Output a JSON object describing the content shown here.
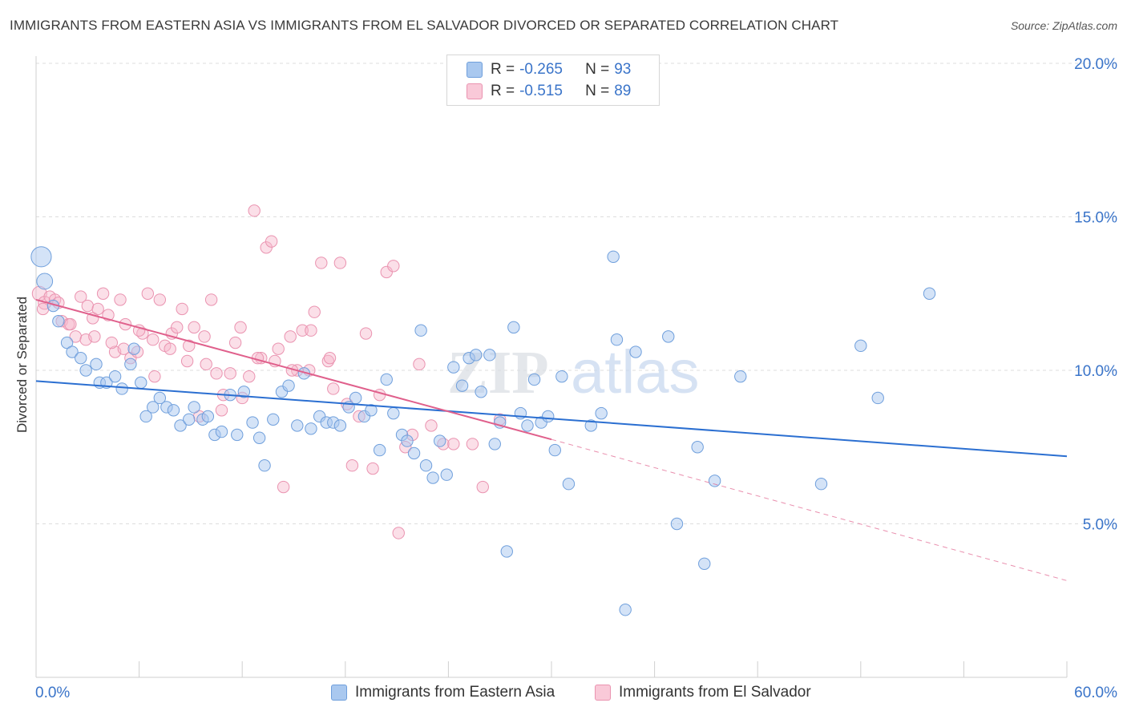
{
  "header": {
    "title": "IMMIGRANTS FROM EASTERN ASIA VS IMMIGRANTS FROM EL SALVADOR DIVORCED OR SEPARATED CORRELATION CHART",
    "source": "Source: ZipAtlas.com"
  },
  "stats": [
    {
      "r_label": "R =",
      "r_value": "-0.265",
      "n_label": "N =",
      "n_value": "93"
    },
    {
      "r_label": "R =",
      "r_value": "-0.515",
      "n_label": "N =",
      "n_value": "89"
    }
  ],
  "legend": {
    "series1": "Immigrants from Eastern Asia",
    "series2": "Immigrants from El Salvador"
  },
  "watermark": {
    "zip": "ZIP",
    "atlas": "atlas"
  },
  "colors": {
    "blue_fill": "#a9c8ef",
    "blue_stroke": "#6f9fdc",
    "blue_line": "#2b6fd1",
    "pink_fill": "#f6b9cc",
    "pink_stroke": "#ea93b0",
    "pink_line": "#e0608c",
    "tick_label": "#3a74c9",
    "grid": "#dddddd"
  },
  "chart_data": {
    "type": "scatter",
    "title": "IMMIGRANTS FROM EASTERN ASIA VS IMMIGRANTS FROM EL SALVADOR DIVORCED OR SEPARATED CORRELATION CHART",
    "xlabel": "",
    "ylabel": "Divorced or Separated",
    "xlim": [
      0,
      60
    ],
    "ylim": [
      0,
      20
    ],
    "x_tick_labels": [
      "0.0%",
      "60.0%"
    ],
    "y_ticks": [
      5,
      10,
      15,
      20
    ],
    "y_tick_labels": [
      "5.0%",
      "10.0%",
      "15.0%",
      "20.0%"
    ],
    "grid": true,
    "legend_position": "bottom",
    "series": [
      {
        "name": "Immigrants from Eastern Asia",
        "r": -0.265,
        "n": 93,
        "trend": {
          "x": [
            0,
            60
          ],
          "y": [
            9.65,
            7.2
          ]
        },
        "points": [
          [
            0.3,
            13.7,
            1.4
          ],
          [
            0.5,
            12.9,
            1.1
          ],
          [
            1.0,
            12.1,
            0.8
          ],
          [
            1.3,
            11.6,
            0.8
          ],
          [
            1.8,
            10.9,
            0.8
          ],
          [
            2.1,
            10.6,
            0.8
          ],
          [
            2.6,
            10.4,
            0.8
          ],
          [
            2.9,
            10.0,
            0.8
          ],
          [
            3.5,
            10.2,
            0.8
          ],
          [
            3.7,
            9.6,
            0.8
          ],
          [
            4.1,
            9.6,
            0.8
          ],
          [
            4.6,
            9.8,
            0.8
          ],
          [
            5.0,
            9.4,
            0.8
          ],
          [
            5.5,
            10.2,
            0.8
          ],
          [
            5.7,
            10.7,
            0.8
          ],
          [
            6.1,
            9.6,
            0.8
          ],
          [
            6.4,
            8.5,
            0.8
          ],
          [
            6.8,
            8.8,
            0.8
          ],
          [
            7.2,
            9.1,
            0.8
          ],
          [
            7.6,
            8.8,
            0.8
          ],
          [
            8.0,
            8.7,
            0.8
          ],
          [
            8.4,
            8.2,
            0.8
          ],
          [
            8.9,
            8.4,
            0.8
          ],
          [
            9.2,
            8.8,
            0.8
          ],
          [
            9.7,
            8.4,
            0.8
          ],
          [
            10.0,
            8.5,
            0.8
          ],
          [
            10.4,
            7.9,
            0.8
          ],
          [
            10.8,
            8.0,
            0.8
          ],
          [
            11.3,
            9.2,
            0.8
          ],
          [
            11.7,
            7.9,
            0.8
          ],
          [
            12.1,
            9.3,
            0.8
          ],
          [
            12.6,
            8.3,
            0.8
          ],
          [
            13.0,
            7.8,
            0.8
          ],
          [
            13.3,
            6.9,
            0.8
          ],
          [
            13.8,
            8.4,
            0.8
          ],
          [
            14.3,
            9.3,
            0.8
          ],
          [
            14.7,
            9.5,
            0.8
          ],
          [
            15.2,
            8.2,
            0.8
          ],
          [
            15.6,
            9.9,
            0.8
          ],
          [
            16.0,
            8.1,
            0.8
          ],
          [
            16.5,
            8.5,
            0.8
          ],
          [
            16.9,
            8.3,
            0.8
          ],
          [
            17.3,
            8.3,
            0.8
          ],
          [
            17.7,
            8.2,
            0.8
          ],
          [
            18.2,
            8.8,
            0.8
          ],
          [
            18.6,
            9.1,
            0.8
          ],
          [
            19.1,
            8.5,
            0.8
          ],
          [
            19.5,
            8.7,
            0.8
          ],
          [
            20.0,
            7.4,
            0.8
          ],
          [
            20.4,
            9.7,
            0.8
          ],
          [
            20.8,
            8.6,
            0.8
          ],
          [
            21.3,
            7.9,
            0.8
          ],
          [
            21.6,
            7.7,
            0.8
          ],
          [
            22.0,
            7.3,
            0.8
          ],
          [
            22.4,
            11.3,
            0.8
          ],
          [
            22.7,
            6.9,
            0.8
          ],
          [
            23.1,
            6.5,
            0.8
          ],
          [
            23.5,
            7.7,
            0.8
          ],
          [
            23.9,
            6.6,
            0.8
          ],
          [
            24.3,
            10.1,
            0.8
          ],
          [
            24.8,
            9.5,
            0.8
          ],
          [
            25.2,
            10.4,
            0.8
          ],
          [
            25.6,
            10.5,
            0.8
          ],
          [
            25.9,
            9.3,
            0.8
          ],
          [
            26.4,
            10.5,
            0.8
          ],
          [
            26.7,
            7.6,
            0.8
          ],
          [
            27.0,
            8.3,
            0.8
          ],
          [
            27.4,
            4.1,
            0.8
          ],
          [
            27.8,
            11.4,
            0.8
          ],
          [
            28.2,
            8.6,
            0.8
          ],
          [
            28.6,
            8.2,
            0.8
          ],
          [
            29.0,
            9.7,
            0.8
          ],
          [
            29.4,
            8.3,
            0.8
          ],
          [
            29.8,
            8.5,
            0.8
          ],
          [
            30.2,
            7.4,
            0.8
          ],
          [
            30.6,
            9.8,
            0.8
          ],
          [
            31.0,
            6.3,
            0.8
          ],
          [
            32.3,
            8.2,
            0.8
          ],
          [
            32.9,
            8.6,
            0.8
          ],
          [
            33.6,
            13.7,
            0.8
          ],
          [
            33.8,
            11.0,
            0.8
          ],
          [
            34.3,
            2.2,
            0.8
          ],
          [
            34.9,
            10.6,
            0.8
          ],
          [
            36.8,
            11.1,
            0.8
          ],
          [
            37.3,
            5.0,
            0.8
          ],
          [
            38.5,
            7.5,
            0.8
          ],
          [
            38.9,
            3.7,
            0.8
          ],
          [
            39.5,
            6.4,
            0.8
          ],
          [
            41.0,
            9.8,
            0.8
          ],
          [
            45.7,
            6.3,
            0.8
          ],
          [
            48.0,
            10.8,
            0.8
          ],
          [
            49.0,
            9.1,
            0.8
          ],
          [
            52.0,
            12.5,
            0.8
          ]
        ]
      },
      {
        "name": "Immigrants from El Salvador",
        "r": -0.515,
        "n": 89,
        "trend": {
          "x": [
            0,
            30
          ],
          "y": [
            12.3,
            7.75
          ]
        },
        "trend_dashed": {
          "x": [
            30,
            60
          ],
          "y": [
            7.75,
            3.15
          ]
        },
        "points": [
          [
            0.2,
            12.5,
            1.0
          ],
          [
            0.5,
            12.2,
            0.9
          ],
          [
            0.8,
            12.4,
            0.8
          ],
          [
            1.1,
            12.3,
            0.8
          ],
          [
            1.5,
            11.6,
            0.8
          ],
          [
            1.9,
            11.5,
            0.8
          ],
          [
            2.3,
            11.1,
            0.8
          ],
          [
            2.6,
            12.4,
            0.8
          ],
          [
            3.0,
            12.1,
            0.8
          ],
          [
            3.3,
            11.7,
            0.8
          ],
          [
            3.6,
            12.0,
            0.8
          ],
          [
            3.9,
            12.5,
            0.8
          ],
          [
            4.2,
            11.8,
            0.8
          ],
          [
            4.6,
            10.6,
            0.8
          ],
          [
            4.9,
            12.3,
            0.8
          ],
          [
            5.2,
            11.5,
            0.8
          ],
          [
            5.5,
            10.4,
            0.8
          ],
          [
            5.9,
            10.6,
            0.8
          ],
          [
            6.2,
            11.2,
            0.8
          ],
          [
            6.5,
            12.5,
            0.8
          ],
          [
            6.9,
            9.8,
            0.8
          ],
          [
            7.2,
            12.3,
            0.8
          ],
          [
            7.5,
            10.8,
            0.8
          ],
          [
            7.9,
            11.2,
            0.8
          ],
          [
            8.2,
            11.4,
            0.8
          ],
          [
            8.5,
            12.0,
            0.8
          ],
          [
            8.9,
            10.8,
            0.8
          ],
          [
            9.2,
            11.4,
            0.8
          ],
          [
            9.5,
            8.5,
            0.8
          ],
          [
            9.9,
            10.2,
            0.8
          ],
          [
            10.2,
            12.3,
            0.8
          ],
          [
            10.5,
            9.9,
            0.8
          ],
          [
            10.9,
            9.2,
            0.8
          ],
          [
            11.3,
            9.9,
            0.8
          ],
          [
            11.6,
            10.9,
            0.8
          ],
          [
            12.0,
            9.1,
            0.8
          ],
          [
            12.4,
            9.8,
            0.8
          ],
          [
            12.7,
            15.2,
            0.8
          ],
          [
            13.1,
            10.4,
            0.8
          ],
          [
            13.4,
            14.0,
            0.8
          ],
          [
            13.7,
            14.2,
            0.8
          ],
          [
            14.1,
            10.7,
            0.8
          ],
          [
            14.4,
            6.2,
            0.8
          ],
          [
            14.8,
            11.1,
            0.8
          ],
          [
            15.2,
            10.0,
            0.8
          ],
          [
            15.5,
            11.3,
            0.8
          ],
          [
            15.9,
            10.0,
            0.8
          ],
          [
            16.2,
            11.9,
            0.8
          ],
          [
            16.6,
            13.5,
            0.8
          ],
          [
            17.0,
            10.3,
            0.8
          ],
          [
            17.3,
            9.4,
            0.8
          ],
          [
            17.7,
            13.5,
            0.8
          ],
          [
            18.1,
            8.9,
            0.8
          ],
          [
            18.4,
            6.9,
            0.8
          ],
          [
            18.8,
            8.5,
            0.8
          ],
          [
            19.2,
            11.2,
            0.8
          ],
          [
            19.6,
            6.8,
            0.8
          ],
          [
            20.0,
            9.2,
            0.8
          ],
          [
            20.4,
            13.2,
            0.8
          ],
          [
            20.8,
            13.4,
            0.8
          ],
          [
            21.1,
            4.7,
            0.8
          ],
          [
            21.5,
            7.5,
            0.8
          ],
          [
            21.9,
            7.9,
            0.8
          ],
          [
            22.3,
            10.2,
            0.8
          ],
          [
            23.0,
            8.2,
            0.8
          ],
          [
            23.7,
            7.6,
            0.8
          ],
          [
            24.3,
            7.6,
            0.8
          ],
          [
            25.4,
            7.6,
            0.8
          ],
          [
            26.0,
            6.2,
            0.8
          ],
          [
            27.0,
            8.4,
            0.8
          ],
          [
            0.4,
            12.0,
            0.8
          ],
          [
            1.3,
            12.2,
            0.8
          ],
          [
            2.0,
            11.5,
            0.8
          ],
          [
            2.9,
            11.0,
            0.8
          ],
          [
            3.4,
            11.1,
            0.8
          ],
          [
            4.4,
            10.9,
            0.8
          ],
          [
            5.1,
            10.7,
            0.8
          ],
          [
            6.0,
            11.3,
            0.8
          ],
          [
            6.8,
            11.0,
            0.8
          ],
          [
            7.8,
            10.7,
            0.8
          ],
          [
            8.8,
            10.3,
            0.8
          ],
          [
            9.8,
            11.1,
            0.8
          ],
          [
            10.8,
            8.7,
            0.8
          ],
          [
            11.9,
            11.4,
            0.8
          ],
          [
            12.9,
            10.4,
            0.8
          ],
          [
            13.9,
            10.3,
            0.8
          ],
          [
            14.9,
            10.0,
            0.8
          ],
          [
            16.0,
            11.3,
            0.8
          ],
          [
            17.1,
            10.4,
            0.8
          ]
        ]
      }
    ]
  }
}
